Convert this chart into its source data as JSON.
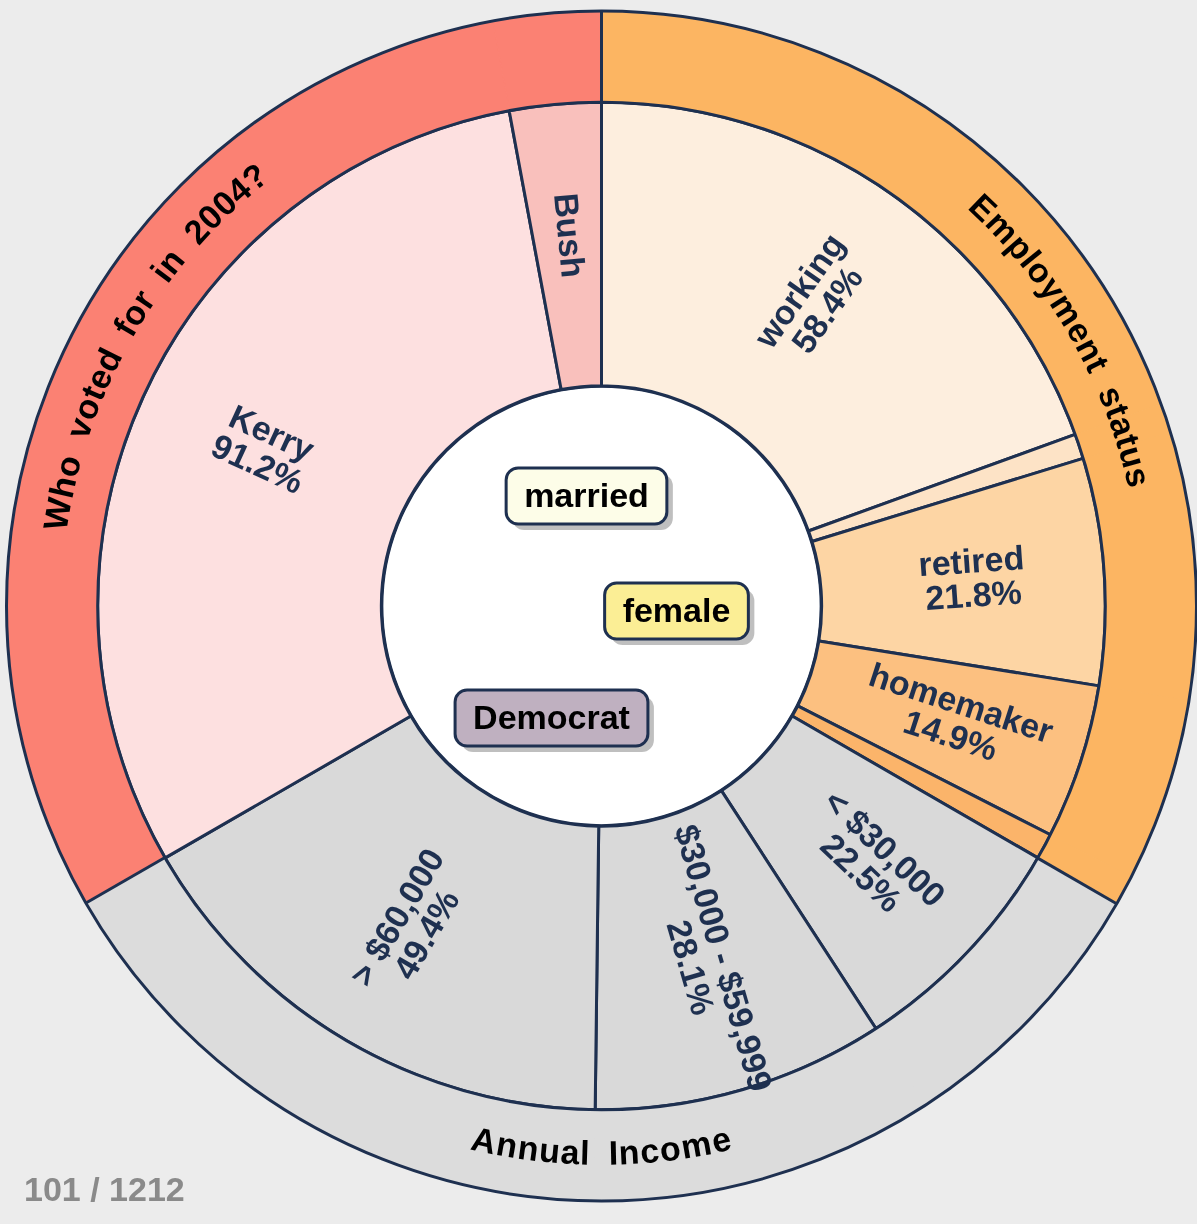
{
  "chart_data": {
    "type": "donut",
    "categories": [
      "working",
      null,
      "retired",
      "homemaker",
      null,
      "< $30,000",
      "$30,000 - $59,999",
      "> $60,000",
      "Kerry",
      "Bush"
    ],
    "series": [
      {
        "values": [
          19.47,
          0.8,
          7.27,
          4.97,
          0.83,
          7.5,
          9.37,
          16.47,
          30.4,
          2.92
        ],
        "colors": [
          "#fcb562",
          "#fcb562",
          "#fcb562",
          "#fcb562",
          "#fcb562",
          "#dcdcdc",
          "#dcdcdc",
          "#dcdcdc",
          "#fb8173",
          "#fb8173"
        ],
        "value_labels": [
          "Employment status",
          null,
          null,
          null,
          null,
          "Annual Income",
          null,
          null,
          "Who voted for in 2004?",
          null
        ]
      },
      {
        "values": [
          58.4,
          2.4,
          21.8,
          14.9,
          2.5,
          22.5,
          28.1,
          49.4,
          91.2,
          8.8
        ],
        "colors": [
          "#fdeede",
          "#fde3c6",
          "#fdd5a4",
          "#fcc080",
          "#fbb46a",
          "#d9d9d9",
          "#d9d9d9",
          "#d9d9d9",
          "#fde0e0",
          "#f9c0bc"
        ],
        "value_labels": [
          "58.4%",
          null,
          "21.8%",
          "14.9%",
          null,
          "22.5%",
          "28.1%",
          "49.4%",
          "91.2%",
          null
        ]
      }
    ],
    "annotations": [
      "married",
      "female",
      "Democrat",
      "101 / 1212"
    ],
    "legend": false
  }
}
